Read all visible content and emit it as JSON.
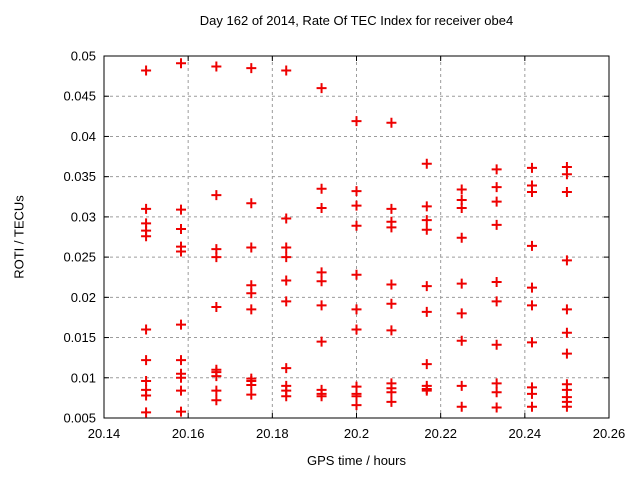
{
  "title": "Day 162 of 2014, Rate Of TEC Index for receiver obe4",
  "colors": {
    "marker": "#ee0000",
    "grid": "#9c9c9c",
    "frame": "#000000",
    "text": "#000000",
    "background": "#ffffff"
  },
  "chart_data": {
    "type": "scatter",
    "title": "Day 162 of 2014, Rate Of TEC Index for receiver obe4",
    "xlabel": "GPS time / hours",
    "ylabel": "ROTI / TECUs",
    "xlim": [
      20.14,
      20.26
    ],
    "ylim": [
      0.005,
      0.05
    ],
    "xticks": [
      20.14,
      20.16,
      20.18,
      20.2,
      20.22,
      20.24,
      20.26
    ],
    "xtick_labels": [
      "20.14",
      "20.16",
      "20.18",
      "20.2",
      "20.22",
      "20.24",
      "20.26"
    ],
    "yticks": [
      0.005,
      0.01,
      0.015,
      0.02,
      0.025,
      0.03,
      0.035,
      0.04,
      0.045,
      0.05
    ],
    "ytick_labels": [
      "0.005",
      "0.01",
      "0.015",
      "0.02",
      "0.025",
      "0.03",
      "0.035",
      "0.04",
      "0.045",
      "0.05"
    ],
    "grid": true,
    "legend": false,
    "marker": "plus",
    "series": [
      {
        "name": "ROTI",
        "points": [
          [
            20.15,
            0.0482
          ],
          [
            20.15,
            0.031
          ],
          [
            20.15,
            0.0292
          ],
          [
            20.15,
            0.0283
          ],
          [
            20.15,
            0.0276
          ],
          [
            20.15,
            0.016
          ],
          [
            20.15,
            0.0122
          ],
          [
            20.15,
            0.0096
          ],
          [
            20.15,
            0.0085
          ],
          [
            20.15,
            0.0078
          ],
          [
            20.15,
            0.0057
          ],
          [
            20.1583,
            0.0491
          ],
          [
            20.1583,
            0.0309
          ],
          [
            20.1583,
            0.0285
          ],
          [
            20.1583,
            0.0263
          ],
          [
            20.1583,
            0.0257
          ],
          [
            20.1583,
            0.0166
          ],
          [
            20.1583,
            0.0122
          ],
          [
            20.1583,
            0.0105
          ],
          [
            20.1583,
            0.01
          ],
          [
            20.1583,
            0.0084
          ],
          [
            20.1583,
            0.0058
          ],
          [
            20.1667,
            0.0487
          ],
          [
            20.1667,
            0.0327
          ],
          [
            20.1667,
            0.026
          ],
          [
            20.1667,
            0.025
          ],
          [
            20.1667,
            0.0188
          ],
          [
            20.1667,
            0.011
          ],
          [
            20.1667,
            0.0107
          ],
          [
            20.1667,
            0.0102
          ],
          [
            20.1667,
            0.0084
          ],
          [
            20.1667,
            0.0072
          ],
          [
            20.175,
            0.0485
          ],
          [
            20.175,
            0.0317
          ],
          [
            20.175,
            0.0262
          ],
          [
            20.175,
            0.0215
          ],
          [
            20.175,
            0.0205
          ],
          [
            20.175,
            0.0185
          ],
          [
            20.175,
            0.0099
          ],
          [
            20.175,
            0.0096
          ],
          [
            20.175,
            0.0091
          ],
          [
            20.175,
            0.0079
          ],
          [
            20.1833,
            0.0482
          ],
          [
            20.1833,
            0.0298
          ],
          [
            20.1833,
            0.0262
          ],
          [
            20.1833,
            0.025
          ],
          [
            20.1833,
            0.0221
          ],
          [
            20.1833,
            0.0195
          ],
          [
            20.1833,
            0.0112
          ],
          [
            20.1833,
            0.009
          ],
          [
            20.1833,
            0.0084
          ],
          [
            20.1833,
            0.0077
          ],
          [
            20.1917,
            0.046
          ],
          [
            20.1917,
            0.0335
          ],
          [
            20.1917,
            0.0311
          ],
          [
            20.1917,
            0.0231
          ],
          [
            20.1917,
            0.022
          ],
          [
            20.1917,
            0.019
          ],
          [
            20.1917,
            0.0145
          ],
          [
            20.1917,
            0.0085
          ],
          [
            20.1917,
            0.008
          ],
          [
            20.1917,
            0.0077
          ],
          [
            20.2,
            0.0419
          ],
          [
            20.2,
            0.0332
          ],
          [
            20.2,
            0.0314
          ],
          [
            20.2,
            0.0289
          ],
          [
            20.2,
            0.0228
          ],
          [
            20.2,
            0.0185
          ],
          [
            20.2,
            0.016
          ],
          [
            20.2,
            0.0089
          ],
          [
            20.2,
            0.008
          ],
          [
            20.2,
            0.0077
          ],
          [
            20.2,
            0.0066
          ],
          [
            20.2083,
            0.0417
          ],
          [
            20.2083,
            0.031
          ],
          [
            20.2083,
            0.0294
          ],
          [
            20.2083,
            0.0287
          ],
          [
            20.2083,
            0.0216
          ],
          [
            20.2083,
            0.0192
          ],
          [
            20.2083,
            0.0159
          ],
          [
            20.2083,
            0.0093
          ],
          [
            20.2083,
            0.0087
          ],
          [
            20.2083,
            0.0082
          ],
          [
            20.2083,
            0.007
          ],
          [
            20.2167,
            0.0366
          ],
          [
            20.2167,
            0.0313
          ],
          [
            20.2167,
            0.0296
          ],
          [
            20.2167,
            0.0284
          ],
          [
            20.2167,
            0.0214
          ],
          [
            20.2167,
            0.0182
          ],
          [
            20.2167,
            0.0117
          ],
          [
            20.2167,
            0.009
          ],
          [
            20.2167,
            0.0086
          ],
          [
            20.2167,
            0.0084
          ],
          [
            20.225,
            0.0334
          ],
          [
            20.225,
            0.0321
          ],
          [
            20.225,
            0.0311
          ],
          [
            20.225,
            0.0274
          ],
          [
            20.225,
            0.0217
          ],
          [
            20.225,
            0.018
          ],
          [
            20.225,
            0.0146
          ],
          [
            20.225,
            0.009
          ],
          [
            20.225,
            0.0064
          ],
          [
            20.2333,
            0.0359
          ],
          [
            20.2333,
            0.0337
          ],
          [
            20.2333,
            0.0319
          ],
          [
            20.2333,
            0.029
          ],
          [
            20.2333,
            0.0219
          ],
          [
            20.2333,
            0.0195
          ],
          [
            20.2333,
            0.0141
          ],
          [
            20.2333,
            0.0093
          ],
          [
            20.2333,
            0.0082
          ],
          [
            20.2333,
            0.0063
          ],
          [
            20.2417,
            0.0361
          ],
          [
            20.2417,
            0.0339
          ],
          [
            20.2417,
            0.0331
          ],
          [
            20.2417,
            0.0264
          ],
          [
            20.2417,
            0.0212
          ],
          [
            20.2417,
            0.019
          ],
          [
            20.2417,
            0.0144
          ],
          [
            20.2417,
            0.0088
          ],
          [
            20.2417,
            0.008
          ],
          [
            20.2417,
            0.0064
          ],
          [
            20.25,
            0.0362
          ],
          [
            20.25,
            0.0353
          ],
          [
            20.25,
            0.0331
          ],
          [
            20.25,
            0.0246
          ],
          [
            20.25,
            0.0185
          ],
          [
            20.25,
            0.0156
          ],
          [
            20.25,
            0.013
          ],
          [
            20.25,
            0.0092
          ],
          [
            20.25,
            0.0085
          ],
          [
            20.25,
            0.0076
          ],
          [
            20.25,
            0.007
          ],
          [
            20.25,
            0.0064
          ]
        ]
      }
    ]
  }
}
